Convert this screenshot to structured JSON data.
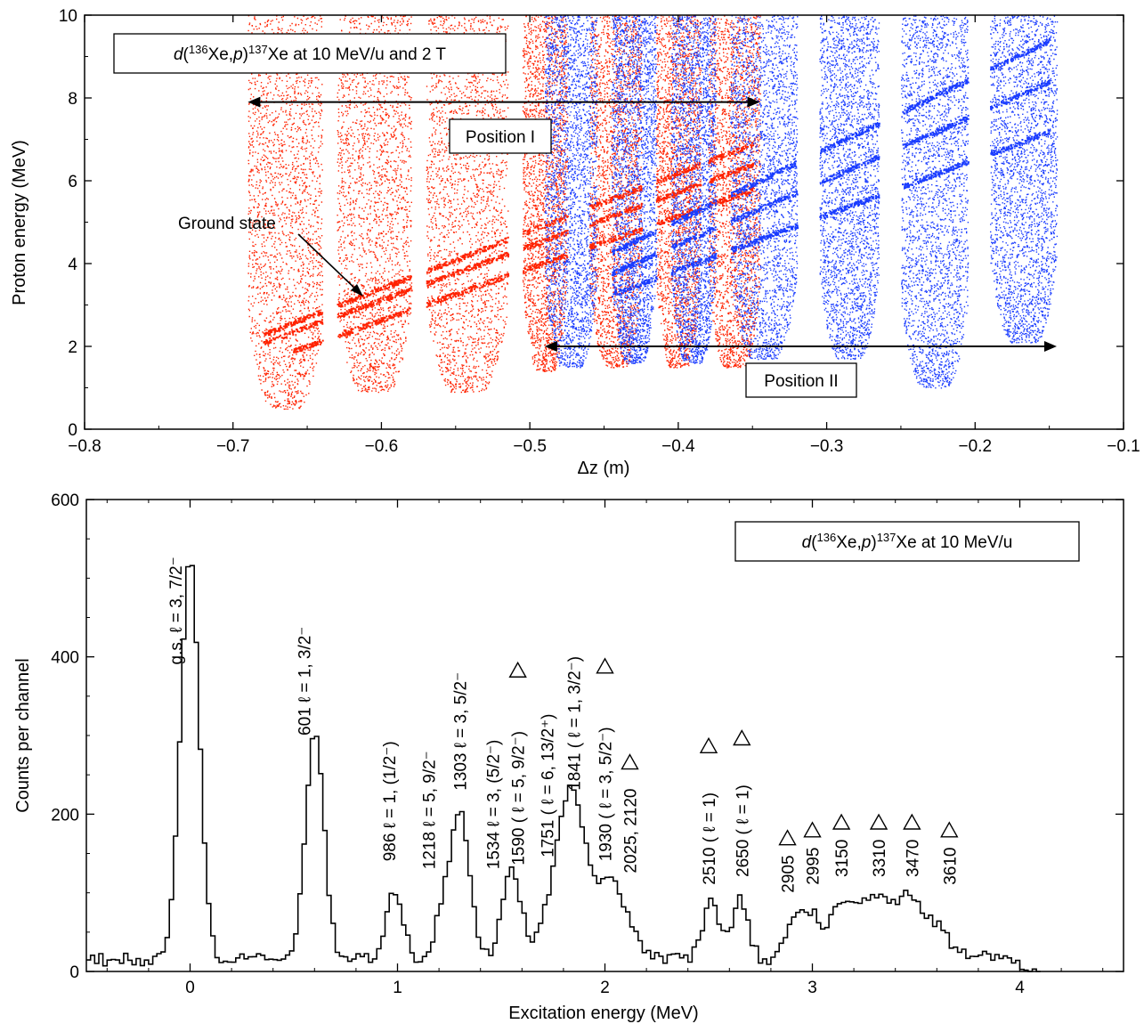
{
  "chart_data": [
    {
      "type": "scatter",
      "title": "",
      "xlabel": "Δz (m)",
      "ylabel": "Proton energy (MeV)",
      "xlim": [
        -0.8,
        -0.1
      ],
      "ylim": [
        0,
        10
      ],
      "xticks": [
        "−0.8",
        "−0.7",
        "−0.6",
        "−0.5",
        "−0.4",
        "−0.3",
        "−0.2",
        "−0.1"
      ],
      "yticks": [
        "0",
        "2",
        "4",
        "6",
        "8",
        "10"
      ],
      "annotation_box": "d(136Xe,p)137Xe at 10 MeV/u and 2 T",
      "position_labels": {
        "first": "Position I",
        "second": "Position II"
      },
      "ground_state_label": "Ground state",
      "position_ranges": {
        "first": [
          -0.69,
          -0.345
        ],
        "first_energy": 7.9,
        "second": [
          -0.49,
          -0.145
        ],
        "second_energy": 2.0
      },
      "colors": {
        "first": "#ff2200",
        "second": "#1a3cff"
      },
      "groups": [
        {
          "position": "first",
          "x": [
            -0.69,
            -0.64
          ],
          "emin": 0.5,
          "slope_band": "low"
        },
        {
          "position": "first",
          "x": [
            -0.63,
            -0.58
          ],
          "emin": 0.9
        },
        {
          "position": "first",
          "x": [
            -0.57,
            -0.515
          ],
          "emin": 0.9
        },
        {
          "position": "first",
          "x": [
            -0.505,
            -0.475
          ],
          "emin": 1.4
        },
        {
          "position": "first",
          "x": [
            -0.46,
            -0.425
          ],
          "emin": 1.5
        },
        {
          "position": "first",
          "x": [
            -0.415,
            -0.385
          ],
          "emin": 1.5
        },
        {
          "position": "first",
          "x": [
            -0.38,
            -0.345
          ],
          "emin": 1.5
        },
        {
          "position": "second",
          "x": [
            -0.49,
            -0.455
          ],
          "emin": 1.5
        },
        {
          "position": "second",
          "x": [
            -0.445,
            -0.415
          ],
          "emin": 1.6
        },
        {
          "position": "second",
          "x": [
            -0.405,
            -0.375
          ],
          "emin": 1.6
        },
        {
          "position": "second",
          "x": [
            -0.365,
            -0.32
          ],
          "emin": 1.7
        },
        {
          "position": "second",
          "x": [
            -0.305,
            -0.265
          ],
          "emin": 1.7
        },
        {
          "position": "second",
          "x": [
            -0.25,
            -0.205
          ],
          "emin": 1.0
        },
        {
          "position": "second",
          "x": [
            -0.19,
            -0.145
          ],
          "emin": 2.1
        }
      ],
      "bands": [
        {
          "x0": -0.68,
          "e0": 2.3,
          "x1": -0.35,
          "e1": 6.9
        },
        {
          "x0": -0.68,
          "e0": 2.1,
          "x1": -0.35,
          "e1": 6.4
        },
        {
          "x0": -0.66,
          "e0": 1.9,
          "x1": -0.35,
          "e1": 5.8
        },
        {
          "x0": -0.45,
          "e0": 4.2,
          "x1": -0.15,
          "e1": 9.4
        },
        {
          "x0": -0.45,
          "e0": 3.7,
          "x1": -0.15,
          "e1": 8.4
        },
        {
          "x0": -0.45,
          "e0": 3.2,
          "x1": -0.15,
          "e1": 7.2
        }
      ]
    },
    {
      "type": "line",
      "title": "",
      "xlabel": "Excitation energy (MeV)",
      "ylabel": "Counts per channel",
      "xlim": [
        -0.5,
        4.5
      ],
      "ylim": [
        0,
        600
      ],
      "xticks": [
        "0",
        "1",
        "2",
        "3",
        "4"
      ],
      "yticks": [
        "0",
        "200",
        "400",
        "600"
      ],
      "annotation_box": "d(136Xe,p)137Xe at 10 MeV/u",
      "baseline": 15,
      "peaks": [
        {
          "e": 0.0,
          "height": 510,
          "width": 0.045
        },
        {
          "e": 0.601,
          "height": 285,
          "width": 0.045
        },
        {
          "e": 0.986,
          "height": 85,
          "width": 0.04
        },
        {
          "e": 1.218,
          "height": 55,
          "width": 0.04
        },
        {
          "e": 1.303,
          "height": 185,
          "width": 0.045
        },
        {
          "e": 1.534,
          "height": 90,
          "width": 0.04
        },
        {
          "e": 1.59,
          "height": 45,
          "width": 0.04
        },
        {
          "e": 1.751,
          "height": 80,
          "width": 0.05
        },
        {
          "e": 1.841,
          "height": 200,
          "width": 0.05
        },
        {
          "e": 1.93,
          "height": 70,
          "width": 0.045
        },
        {
          "e": 2.025,
          "height": 85,
          "width": 0.05
        },
        {
          "e": 2.12,
          "height": 40,
          "width": 0.05
        },
        {
          "e": 2.51,
          "height": 70,
          "width": 0.04
        },
        {
          "e": 2.65,
          "height": 75,
          "width": 0.04
        },
        {
          "e": 2.905,
          "height": 40,
          "width": 0.045
        },
        {
          "e": 2.995,
          "height": 55,
          "width": 0.045
        },
        {
          "e": 3.15,
          "height": 75,
          "width": 0.06
        },
        {
          "e": 3.31,
          "height": 75,
          "width": 0.07
        },
        {
          "e": 3.47,
          "height": 80,
          "width": 0.06
        },
        {
          "e": 3.61,
          "height": 40,
          "width": 0.05
        },
        {
          "e": 3.8,
          "height": 10,
          "width": 0.08
        }
      ],
      "labels": [
        {
          "e": -0.07,
          "text": "g.s.  ℓ = 3, 7/2⁻",
          "y": 390,
          "tri": false
        },
        {
          "e": 0.55,
          "text": "601  ℓ = 1, 3/2⁻",
          "y": 300,
          "tri": false
        },
        {
          "e": 0.96,
          "text": "986  ℓ = 1, (1/2⁻)",
          "y": 140,
          "tri": false
        },
        {
          "e": 1.15,
          "text": "1218  ℓ = 5, 9/2⁻",
          "y": 130,
          "tri": false
        },
        {
          "e": 1.3,
          "text": "1303  ℓ = 3, 5/2⁻",
          "y": 230,
          "tri": false
        },
        {
          "e": 1.46,
          "text": "1534  ℓ = 3, (5/2⁻)",
          "y": 130,
          "tri": false
        },
        {
          "e": 1.58,
          "text": "1590 ( ℓ = 5, 9/2⁻)",
          "y": 135,
          "tri": true
        },
        {
          "e": 1.72,
          "text": "1751 ( ℓ = 6, 13/2⁺)",
          "y": 145,
          "tri": false
        },
        {
          "e": 1.85,
          "text": "1841 ( ℓ = 1, 3/2⁻)",
          "y": 230,
          "tri": false
        },
        {
          "e": 2.0,
          "text": "1930 ( ℓ = 3, 5/2⁻)",
          "y": 140,
          "tri": true
        },
        {
          "e": 2.12,
          "text": "2025, 2120",
          "y": 125,
          "tri": true
        },
        {
          "e": 2.5,
          "text": "2510 ( ℓ = 1)",
          "y": 110,
          "tri": true
        },
        {
          "e": 2.66,
          "text": "2650 ( ℓ = 1)",
          "y": 120,
          "tri": true
        },
        {
          "e": 2.88,
          "text": "2905",
          "y": 100,
          "tri": true
        },
        {
          "e": 3.0,
          "text": "2995",
          "y": 110,
          "tri": true
        },
        {
          "e": 3.14,
          "text": "3150",
          "y": 120,
          "tri": true
        },
        {
          "e": 3.32,
          "text": "3310",
          "y": 120,
          "tri": true
        },
        {
          "e": 3.48,
          "text": "3470",
          "y": 120,
          "tri": true
        },
        {
          "e": 3.66,
          "text": "3610",
          "y": 110,
          "tri": true
        }
      ]
    }
  ]
}
